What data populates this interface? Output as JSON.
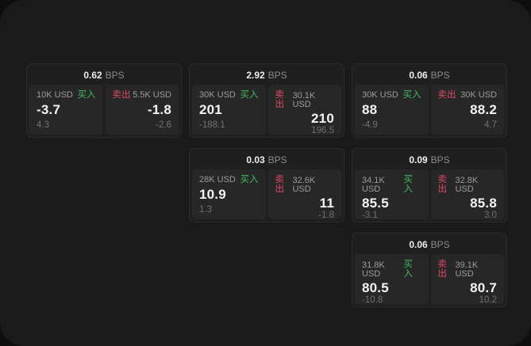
{
  "labels": {
    "bps": "BPS",
    "buy": "买入",
    "sell": "卖出"
  },
  "colors": {
    "page_background": "#0e0e0e",
    "panel_background": "#1a1a1b",
    "card_background": "#1f1f20",
    "cell_background": "#272728",
    "buy_green": "#40bc5f",
    "sell_red": "#de4b62"
  },
  "cards": [
    {
      "col": 0,
      "row": 0,
      "bps": "0.62",
      "buy": {
        "size": "10K USD",
        "price": "-3.7",
        "sub": "4.3"
      },
      "sell": {
        "size": "5.5K USD",
        "price": "-1.8",
        "sub": "-2.6"
      }
    },
    {
      "col": 1,
      "row": 0,
      "bps": "2.92",
      "buy": {
        "size": "30K USD",
        "price": "201",
        "sub": "-188.1"
      },
      "sell": {
        "size": "30.1K USD",
        "price": "210",
        "sub": "196.5"
      }
    },
    {
      "col": 2,
      "row": 0,
      "bps": "0.06",
      "buy": {
        "size": "30K USD",
        "price": "88",
        "sub": "-4.9"
      },
      "sell": {
        "size": "30K USD",
        "price": "88.2",
        "sub": "4.7"
      }
    },
    {
      "col": 1,
      "row": 1,
      "bps": "0.03",
      "buy": {
        "size": "28K USD",
        "price": "10.9",
        "sub": "1.3"
      },
      "sell": {
        "size": "32.6K USD",
        "price": "11",
        "sub": "-1.8"
      }
    },
    {
      "col": 2,
      "row": 1,
      "bps": "0.09",
      "buy": {
        "size": "34.1K USD",
        "price": "85.5",
        "sub": "-3.1"
      },
      "sell": {
        "size": "32.8K USD",
        "price": "85.8",
        "sub": "3.0"
      }
    },
    {
      "col": 2,
      "row": 2,
      "bps": "0.06",
      "buy": {
        "size": "31.8K USD",
        "price": "80.5",
        "sub": "-10.8"
      },
      "sell": {
        "size": "39.1K USD",
        "price": "80.7",
        "sub": "10.2"
      }
    }
  ]
}
